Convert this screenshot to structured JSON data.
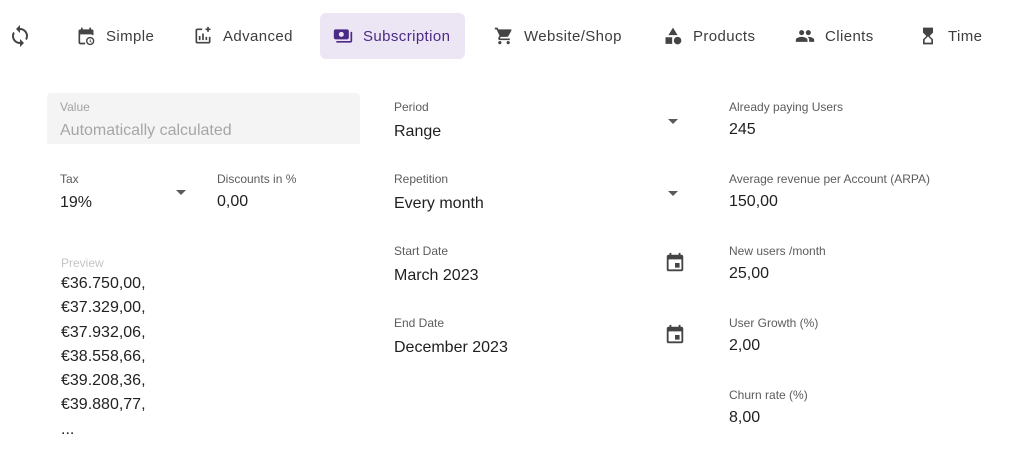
{
  "tabs": [
    {
      "label": "Simple",
      "icon": "calendar-clock-icon",
      "active": false
    },
    {
      "label": "Advanced",
      "icon": "chart-plus-icon",
      "active": false
    },
    {
      "label": "Subscription",
      "icon": "payments-icon",
      "active": true
    },
    {
      "label": "Website/Shop",
      "icon": "shopping-cart-icon",
      "active": false
    },
    {
      "label": "Products",
      "icon": "category-shapes-icon",
      "active": false
    },
    {
      "label": "Clients",
      "icon": "group-icon",
      "active": false
    },
    {
      "label": "Time",
      "icon": "hourglass-icon",
      "active": false
    }
  ],
  "accent_color": "#4b2a86",
  "active_tab_bg": "#ece5f4",
  "form": {
    "value": {
      "label": "Value",
      "placeholder": "Automatically calculated"
    },
    "tax": {
      "label": "Tax",
      "value": "19%"
    },
    "discounts": {
      "label": "Discounts in %",
      "value": "0,00"
    },
    "preview": {
      "label": "Preview",
      "items": [
        "€36.750,00,",
        "€37.329,00,",
        "€37.932,06,",
        "€38.558,66,",
        "€39.208,36,",
        "€39.880,77,",
        "..."
      ]
    },
    "period": {
      "label": "Period",
      "value": "Range"
    },
    "repetition": {
      "label": "Repetition",
      "value": "Every month"
    },
    "start_date": {
      "label": "Start Date",
      "value": "March 2023"
    },
    "end_date": {
      "label": "End Date",
      "value": "December 2023"
    },
    "already_paying": {
      "label": "Already paying Users",
      "value": "245"
    },
    "arpa": {
      "label": "Average revenue per Account (ARPA)",
      "value": "150,00"
    },
    "new_users": {
      "label": "New users /month",
      "value": "25,00"
    },
    "user_growth": {
      "label": "User Growth (%)",
      "value": "2,00"
    },
    "churn": {
      "label": "Churn rate (%)",
      "value": "8,00"
    }
  }
}
